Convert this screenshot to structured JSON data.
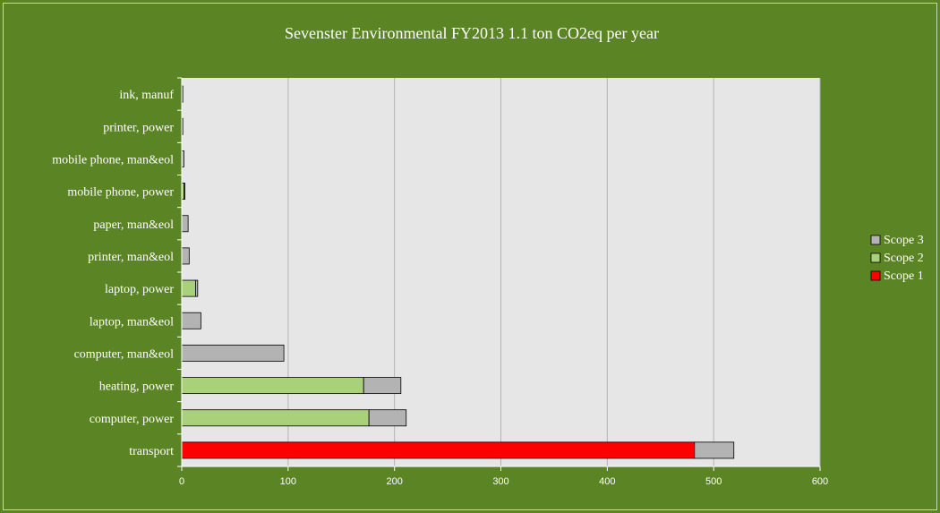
{
  "chart_data": {
    "type": "bar",
    "orientation": "horizontal",
    "stacked": true,
    "title": "Sevenster Environmental FY2013 1.1 ton CO2eq per year",
    "xlabel": "",
    "ylabel": "",
    "xlim": [
      0,
      600
    ],
    "x_ticks": [
      "0",
      "100",
      "200",
      "300",
      "400",
      "500",
      "600"
    ],
    "grid": true,
    "legend_position": "right",
    "categories": [
      "transport",
      "computer, power",
      "heating, power",
      "computer, man&eol",
      "laptop, man&eol",
      "laptop, power",
      "printer, man&eol",
      "paper, man&eol",
      "mobile phone, power",
      "mobile phone, man&eol",
      "printer, power",
      "ink, manuf"
    ],
    "series": [
      {
        "name": "Scope 1",
        "color": "#ff0000",
        "values": [
          482,
          0,
          0,
          0,
          0,
          0,
          0,
          0,
          0,
          0,
          0,
          0
        ]
      },
      {
        "name": "Scope 2",
        "color": "#a9d17a",
        "values": [
          0,
          176,
          171,
          0,
          0,
          13,
          0,
          0,
          2,
          0,
          0,
          0
        ]
      },
      {
        "name": "Scope 3",
        "color": "#b3b3b3",
        "values": [
          37,
          35,
          35,
          96,
          18,
          2,
          7,
          6,
          1,
          2,
          1,
          1
        ]
      }
    ],
    "legend_order": [
      "Scope 3",
      "Scope 2",
      "Scope 1"
    ]
  }
}
